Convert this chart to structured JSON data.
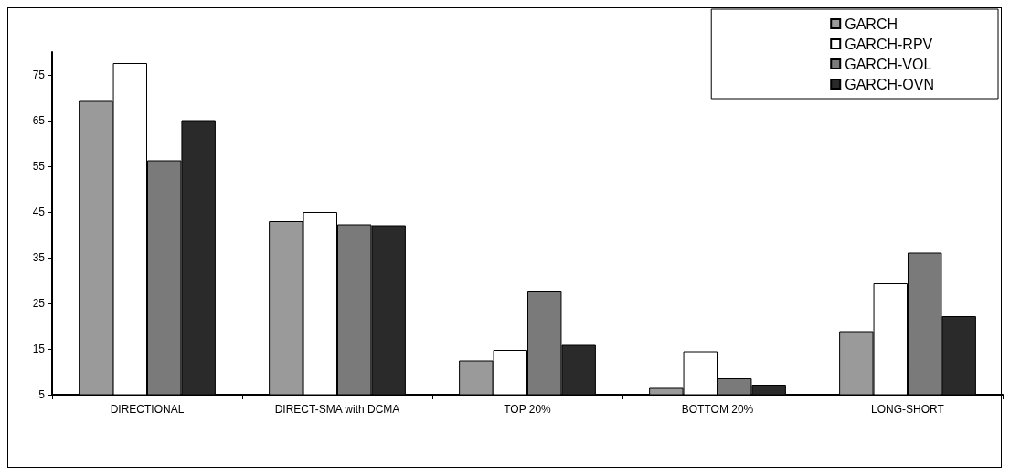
{
  "chart_data": {
    "type": "bar",
    "categories": [
      "DIRECTIONAL",
      "DIRECT-SMA with DCMA",
      "TOP 20%",
      "BOTTOM 20%",
      "LONG-SHORT"
    ],
    "series": [
      {
        "name": "GARCH",
        "color": "#9a9a9a",
        "values": [
          69.3,
          43.0,
          12.5,
          6.5,
          18.9
        ]
      },
      {
        "name": "GARCH-RPV",
        "color": "#ffffff",
        "values": [
          77.6,
          45.0,
          14.8,
          14.5,
          29.4
        ]
      },
      {
        "name": "GARCH-VOL",
        "color": "#7a7a7a",
        "values": [
          56.3,
          42.3,
          27.6,
          8.6,
          36.1
        ]
      },
      {
        "name": "GARCH-OVN",
        "color": "#2a2a2a",
        "values": [
          65.1,
          42.1,
          15.9,
          7.2,
          22.2
        ]
      }
    ],
    "ylim": [
      5,
      80
    ],
    "yticks": [
      5,
      15,
      25,
      35,
      45,
      55,
      65,
      75
    ],
    "grid": false,
    "legend": "top right"
  }
}
